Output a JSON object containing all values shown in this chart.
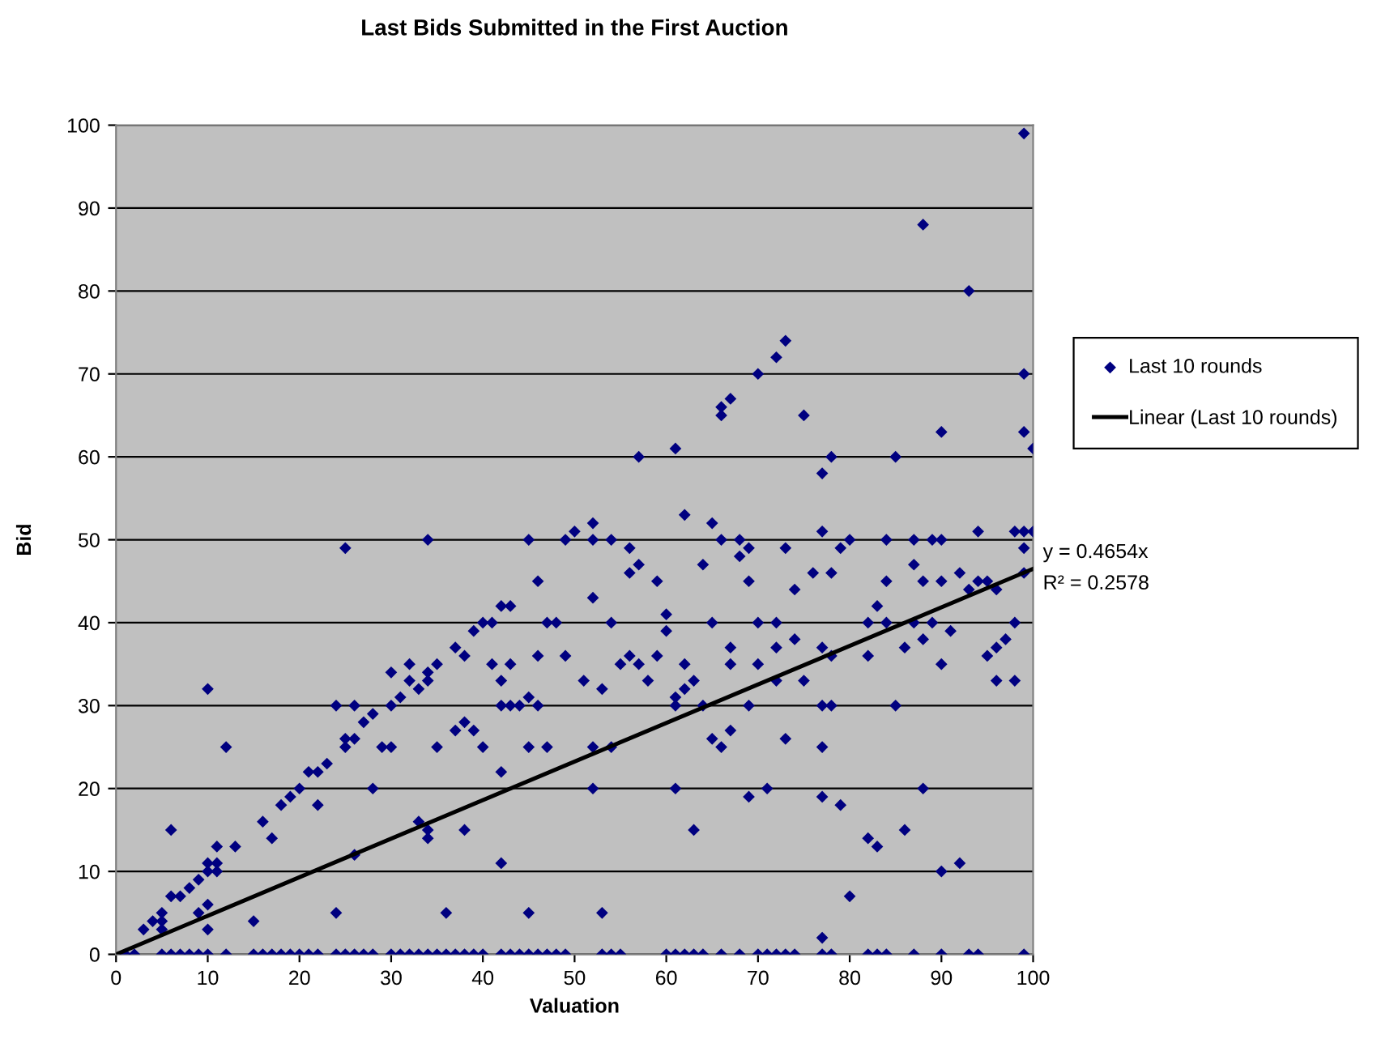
{
  "chart_data": {
    "type": "scatter",
    "title": "Last Bids Submitted in the First Auction",
    "xlabel": "Valuation",
    "ylabel": "Bid",
    "xlim": [
      0,
      100
    ],
    "ylim": [
      0,
      100
    ],
    "xticks": [
      0,
      10,
      20,
      30,
      40,
      50,
      60,
      70,
      80,
      90,
      100
    ],
    "yticks": [
      0,
      10,
      20,
      30,
      40,
      50,
      60,
      70,
      80,
      90,
      100
    ],
    "grid": "y",
    "legend": "right",
    "marker": "diamond",
    "annotations": [
      "y = 0.4654x",
      "R² = 0.2578"
    ],
    "series": [
      {
        "name": "Last 10 rounds",
        "color": "#000080",
        "x": [
          1,
          2,
          5,
          6,
          7,
          8,
          9,
          10,
          12,
          15,
          16,
          17,
          18,
          19,
          20,
          21,
          22,
          24,
          25,
          26,
          27,
          28,
          30,
          31,
          32,
          33,
          34,
          35,
          36,
          37,
          38,
          39,
          40,
          42,
          43,
          44,
          45,
          46,
          47,
          48,
          49,
          53,
          54,
          55,
          60,
          61,
          62,
          63,
          64,
          66,
          68,
          70,
          71,
          72,
          73,
          74,
          77,
          78,
          82,
          83,
          84,
          87,
          90,
          93,
          94,
          99,
          3,
          4,
          5,
          5,
          5,
          6,
          6,
          7,
          8,
          9,
          9,
          10,
          10,
          10,
          10,
          11,
          11,
          11,
          10,
          12,
          13,
          15,
          16,
          17,
          18,
          19,
          20,
          21,
          22,
          22,
          23,
          24,
          24,
          25,
          25,
          25,
          26,
          26,
          26,
          27,
          28,
          28,
          29,
          30,
          30,
          30,
          31,
          32,
          32,
          33,
          33,
          34,
          34,
          34,
          34,
          34,
          35,
          35,
          36,
          37,
          37,
          38,
          38,
          38,
          39,
          39,
          40,
          40,
          41,
          41,
          42,
          42,
          42,
          42,
          42,
          43,
          43,
          43,
          44,
          45,
          45,
          45,
          45,
          46,
          46,
          46,
          47,
          47,
          48,
          49,
          49,
          50,
          51,
          52,
          52,
          52,
          52,
          52,
          53,
          53,
          54,
          54,
          54,
          55,
          56,
          56,
          56,
          57,
          57,
          57,
          58,
          59,
          59,
          60,
          60,
          61,
          61,
          61,
          61,
          62,
          62,
          62,
          63,
          63,
          64,
          64,
          65,
          65,
          65,
          66,
          66,
          66,
          66,
          67,
          67,
          67,
          67,
          68,
          68,
          69,
          69,
          69,
          69,
          70,
          70,
          70,
          71,
          72,
          72,
          72,
          72,
          73,
          73,
          73,
          74,
          74,
          75,
          75,
          76,
          77,
          77,
          77,
          77,
          77,
          77,
          77,
          78,
          78,
          78,
          78,
          79,
          79,
          80,
          80,
          82,
          82,
          82,
          83,
          83,
          84,
          84,
          84,
          85,
          85,
          86,
          86,
          87,
          87,
          87,
          88,
          88,
          88,
          88,
          89,
          89,
          90,
          90,
          90,
          90,
          90,
          91,
          92,
          92,
          93,
          93,
          94,
          94,
          95,
          95,
          96,
          96,
          96,
          97,
          98,
          98,
          98,
          99,
          99,
          99,
          99,
          99,
          99,
          100,
          100
        ],
        "values": [
          0,
          0,
          0,
          0,
          0,
          0,
          0,
          0,
          0,
          0,
          0,
          0,
          0,
          0,
          0,
          0,
          0,
          0,
          0,
          0,
          0,
          0,
          0,
          0,
          0,
          0,
          0,
          0,
          0,
          0,
          0,
          0,
          0,
          0,
          0,
          0,
          0,
          0,
          0,
          0,
          0,
          0,
          0,
          0,
          0,
          0,
          0,
          0,
          0,
          0,
          0,
          0,
          0,
          0,
          0,
          0,
          0,
          0,
          0,
          0,
          0,
          0,
          0,
          0,
          0,
          0,
          3,
          4,
          5,
          4,
          3,
          15,
          7,
          7,
          8,
          9,
          5,
          6,
          3,
          10,
          11,
          11,
          10,
          13,
          32,
          25,
          13,
          4,
          16,
          14,
          18,
          19,
          20,
          22,
          22,
          18,
          23,
          30,
          5,
          25,
          49,
          26,
          26,
          30,
          12,
          28,
          29,
          20,
          25,
          25,
          34,
          30,
          31,
          33,
          35,
          16,
          32,
          15,
          14,
          33,
          50,
          34,
          35,
          25,
          5,
          37,
          27,
          36,
          28,
          15,
          39,
          27,
          40,
          25,
          40,
          35,
          11,
          22,
          30,
          33,
          42,
          42,
          35,
          30,
          30,
          31,
          50,
          5,
          25,
          45,
          36,
          30,
          40,
          25,
          40,
          36,
          50,
          51,
          33,
          50,
          52,
          43,
          25,
          20,
          32,
          5,
          50,
          40,
          25,
          35,
          46,
          49,
          36,
          47,
          35,
          60,
          33,
          45,
          36,
          41,
          39,
          61,
          31,
          20,
          30,
          53,
          35,
          32,
          33,
          15,
          47,
          30,
          52,
          40,
          26,
          66,
          65,
          50,
          25,
          67,
          37,
          35,
          27,
          50,
          48,
          49,
          45,
          30,
          19,
          70,
          40,
          35,
          20,
          72,
          40,
          37,
          33,
          74,
          26,
          49,
          44,
          38,
          65,
          33,
          46,
          58,
          51,
          37,
          30,
          25,
          19,
          2,
          60,
          46,
          36,
          30,
          49,
          18,
          50,
          7,
          40,
          14,
          36,
          13,
          42,
          50,
          45,
          40,
          60,
          30,
          37,
          15,
          47,
          50,
          40,
          88,
          45,
          38,
          20,
          40,
          50,
          63,
          45,
          35,
          10,
          50,
          39,
          11,
          46,
          80,
          44,
          45,
          51,
          45,
          36,
          33,
          37,
          44,
          38,
          51,
          40,
          33,
          99,
          70,
          63,
          49,
          46,
          51,
          61,
          51
        ]
      },
      {
        "name": "Linear (Last 10 rounds)",
        "type": "line",
        "color": "#000000",
        "marker": "none",
        "line_style": "solid",
        "x": [
          0,
          100
        ],
        "values": [
          0,
          46.5
        ]
      }
    ]
  }
}
